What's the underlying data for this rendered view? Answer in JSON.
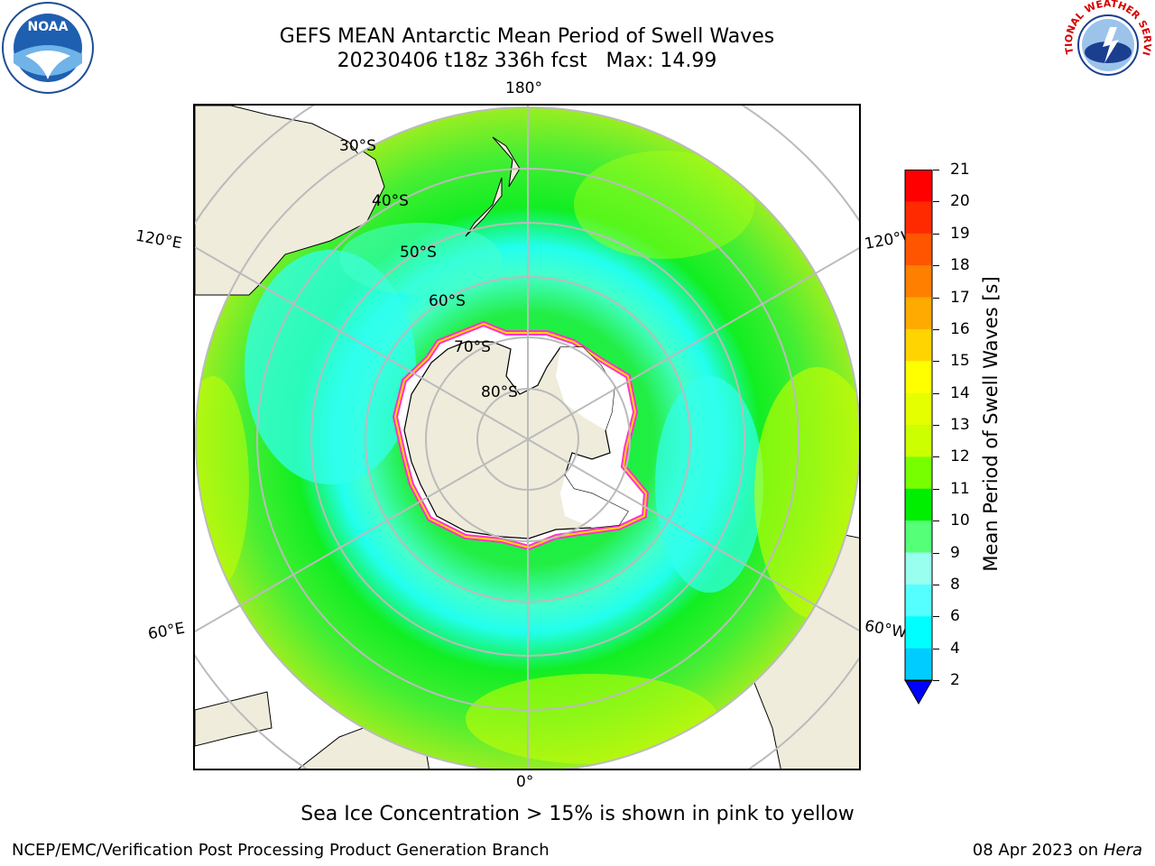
{
  "header": {
    "title_line1": "GEFS MEAN Antarctic Mean Period of Swell Waves",
    "title_line2": "20230406 t18z 336h fcst   Max: 14.99"
  },
  "logos": {
    "left": "noaa-logo",
    "left_text": "NOAA",
    "right": "nws-logo",
    "right_text": "NATIONAL WEATHER SERVICE"
  },
  "map": {
    "projection": "south-polar-stereographic",
    "longitude_labels": {
      "top": "180°",
      "upper_left": "120°E",
      "upper_right": "120°W",
      "lower_left": "60°E",
      "lower_right": "60°W",
      "bottom": "0°"
    },
    "latitude_labels": [
      "30°S",
      "40°S",
      "50°S",
      "60°S",
      "70°S",
      "80°S"
    ],
    "colors": {
      "land": "#efecdc",
      "sea_ice_outline": "#ff33cc",
      "sea_ice_fill": "#ffffff",
      "gridline": "#bbbbbb"
    }
  },
  "colorbar": {
    "label": "Mean Period of Swell Waves [s]",
    "ticks": [
      "21",
      "20",
      "19",
      "18",
      "17",
      "16",
      "15",
      "14",
      "13",
      "12",
      "11",
      "10",
      "9",
      "8",
      "6",
      "4",
      "2"
    ],
    "colors": [
      "#ff0000",
      "#ff2a00",
      "#ff5500",
      "#ff7f00",
      "#ffaa00",
      "#ffd400",
      "#ffff00",
      "#e6ff00",
      "#ccff00",
      "#77ff00",
      "#00ee00",
      "#55ff77",
      "#99ffee",
      "#55ffff",
      "#00ffff",
      "#00ccff",
      "#0066ff",
      "#0000ff"
    ]
  },
  "note": "Sea Ice Concentration > 15% is shown in pink to yellow",
  "footer": {
    "left": "NCEP/EMC/Verification Post Processing Product Generation Branch",
    "date": "08 Apr 2023 on ",
    "host": "Hera"
  }
}
